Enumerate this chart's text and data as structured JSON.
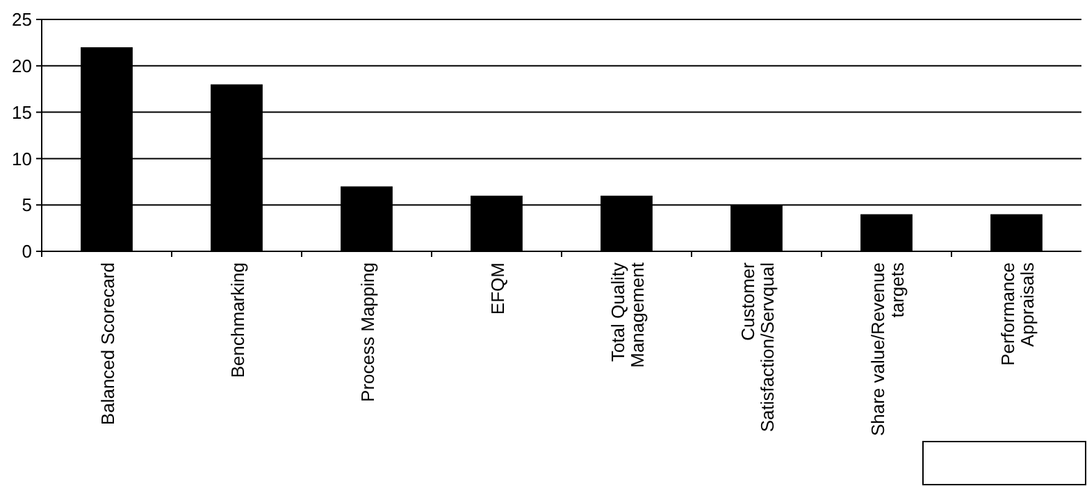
{
  "chart_data": {
    "type": "bar",
    "categories": [
      "Balanced Scorecard",
      "Benchmarking",
      "Process Mapping",
      "EFQM",
      "Total Quality Management",
      "Customer Satisfaction/Servqual",
      "Share value/Revenue targets",
      "Performance Appraisals"
    ],
    "values": [
      22,
      18,
      7,
      6,
      6,
      5,
      4,
      4
    ],
    "color": "#000000",
    "ylim": [
      0,
      25
    ],
    "yticks": [
      0,
      5,
      10,
      15,
      20,
      25
    ],
    "grid": "y"
  }
}
